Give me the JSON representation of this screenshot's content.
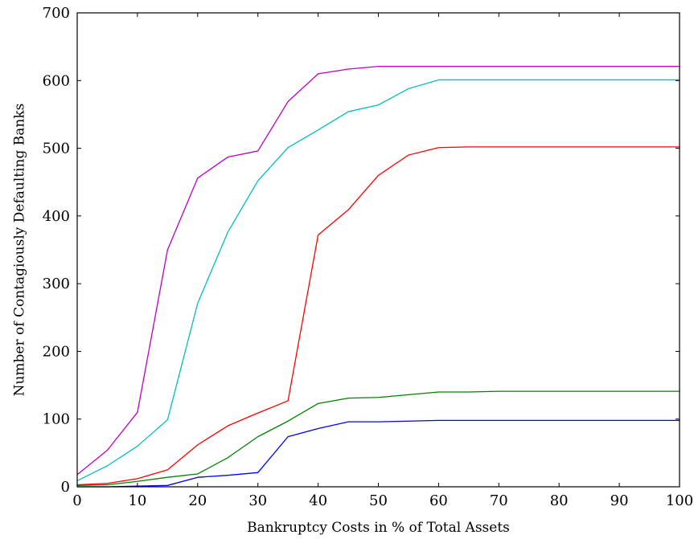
{
  "chart_data": {
    "type": "line",
    "xlabel": "Bankruptcy Costs in % of Total Assets",
    "ylabel": "Number of Contagiously Defaulting Banks",
    "xlim": [
      0,
      100
    ],
    "ylim": [
      0,
      700
    ],
    "xticks": [
      "0",
      "10",
      "20",
      "30",
      "40",
      "50",
      "60",
      "70",
      "80",
      "90",
      "100"
    ],
    "yticks": [
      "0",
      "100",
      "200",
      "300",
      "400",
      "500",
      "600",
      "700"
    ],
    "grid": false,
    "legend": "none",
    "x": [
      0,
      5,
      10,
      15,
      20,
      25,
      30,
      35,
      40,
      45,
      50,
      55,
      60,
      65,
      70,
      75,
      80,
      85,
      90,
      95,
      100
    ],
    "series": [
      {
        "color": "#0000ff",
        "values": [
          0,
          0,
          1,
          2,
          14,
          17,
          21,
          74,
          86,
          96,
          96,
          97,
          98,
          98,
          98,
          98,
          98,
          98,
          98,
          98,
          98
        ]
      },
      {
        "color": "#008000",
        "values": [
          2,
          3,
          8,
          14,
          19,
          43,
          74,
          97,
          123,
          131,
          132,
          136,
          140,
          140,
          141,
          141,
          141,
          141,
          141,
          141,
          141
        ]
      },
      {
        "color": "#ff0000",
        "values": [
          3,
          5,
          12,
          25,
          62,
          90,
          109,
          127,
          372,
          409,
          460,
          490,
          501,
          502,
          502,
          502,
          502,
          502,
          502,
          502,
          502
        ]
      },
      {
        "color": "#00bfbf",
        "values": [
          9,
          31,
          60,
          99,
          271,
          376,
          452,
          501,
          527,
          554,
          564,
          588,
          601,
          601,
          601,
          601,
          601,
          601,
          601,
          601,
          601
        ]
      },
      {
        "color": "#bf00bf",
        "values": [
          18,
          54,
          110,
          350,
          456,
          487,
          496,
          569,
          610,
          617,
          621,
          621,
          621,
          621,
          621,
          621,
          621,
          621,
          621,
          621,
          621
        ]
      }
    ]
  }
}
